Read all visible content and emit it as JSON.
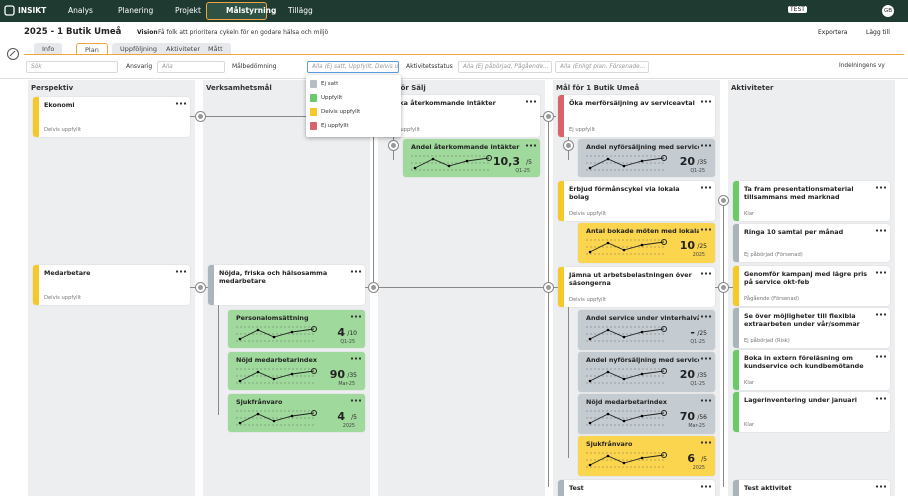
{
  "nav": {
    "brand": "INSIKT",
    "items": [
      "Analys",
      "Planering",
      "Projekt",
      "Målstyrning",
      "Tillägg"
    ],
    "active": "Målstyrning",
    "env": "TEST",
    "user": "GB"
  },
  "header": {
    "title": "2025 - 1 Butik Umeå",
    "vision_label": "Vision",
    "vision": "Få folk att prioritera cykeln för en godare hälsa och miljö",
    "actions": [
      "Exportera",
      "Lägg till"
    ]
  },
  "tabs": [
    "Info",
    "Plan",
    "Uppföljning",
    "Aktiviteter",
    "Mått"
  ],
  "active_tab": "Plan",
  "filters": {
    "search": "Sök",
    "owner_label": "Ansvarig",
    "owner": "Alla",
    "goal_label": "Målbedömning",
    "goal": "Alla (Ej satt, Uppfyllt, Delvis upp...",
    "activity_label": "Aktivitetsstatus",
    "activity": "Alla (Ej påbörjad, Pågående...",
    "plan": "Alla (Enligt plan, Försenade...",
    "view": "Indelningens vy"
  },
  "dropdown": [
    {
      "label": "Ej satt",
      "color": "#b5bec5"
    },
    {
      "label": "Uppfyllt",
      "color": "#6cc96a"
    },
    {
      "label": "Delvis uppfyllt",
      "color": "#f5c928"
    },
    {
      "label": "Ej uppfyllt",
      "color": "#d9636b"
    }
  ],
  "columns": [
    {
      "title": "Perspektiv",
      "cards": [
        {
          "type": "goal",
          "title": "Ekonomi",
          "status": "Delvis uppfyllt",
          "color": "#f5c928"
        },
        {
          "type": "goal",
          "title": "Medarbetare",
          "status": "Delvis uppfyllt",
          "color": "#f5c928"
        }
      ]
    },
    {
      "title": "Verksamhetsmål",
      "cards": [
        {
          "type": "goal",
          "title": "Nöjda, friska och hälsosamma medarbetare",
          "color": "#a9b4bb"
        },
        {
          "type": "measure",
          "title": "Personalomsättning",
          "value": "4",
          "target": "/10",
          "period": "Q1-25",
          "color": "#9fd99b"
        },
        {
          "type": "measure",
          "title": "Nöjd medarbetarindex",
          "value": "90",
          "target": "/35",
          "period": "Mar-25",
          "color": "#9fd99b"
        },
        {
          "type": "measure",
          "title": "Sjukfrånvaro",
          "value": "4",
          "target": "/5",
          "period": "2025",
          "color": "#9fd99b"
        }
      ]
    },
    {
      "title": "Mål för Sälj",
      "cards": [
        {
          "type": "goal",
          "title": "Öka återkommande intäkter",
          "status": "Ej uppfyllt",
          "color": "#d9636b"
        },
        {
          "type": "measure",
          "title": "Andel återkommande intäkter",
          "value": "10,3",
          "target": "/5",
          "period": "Q1-25",
          "color": "#9fd99b"
        }
      ]
    },
    {
      "title": "Mål för 1 Butik Umeå",
      "cards": [
        {
          "type": "goal",
          "title": "Öka merförsäljning av serviceavtal",
          "status": "Ej uppfyllt",
          "color": "#d9636b"
        },
        {
          "type": "measure",
          "title": "Andel nyförsäljning med serviceavtal",
          "value": "20",
          "target": "/35",
          "period": "Q1-25",
          "color": "#c4ccd2"
        },
        {
          "type": "goal",
          "title": "Erbjud förmånscykel via lokala bolag",
          "status": "Delvis uppfyllt",
          "color": "#f5c928"
        },
        {
          "type": "measure",
          "title": "Antal bokade möten med lokala bo...",
          "value": "10",
          "target": "/25",
          "period": "2025",
          "color": "#fcd54e"
        },
        {
          "type": "goal",
          "title": "Jämna ut arbetsbelastningen över säsongerna",
          "status": "Delvis uppfyllt",
          "color": "#f5c928"
        },
        {
          "type": "measure",
          "title": "Andel service under vinterhalvår",
          "value": "-",
          "target": "/25",
          "period": "Q1-25",
          "color": "#c4ccd2"
        },
        {
          "type": "measure",
          "title": "Andel nyförsäljning med serviceavtal",
          "value": "20",
          "target": "/35",
          "period": "Q1-25",
          "color": "#c4ccd2"
        },
        {
          "type": "measure",
          "title": "Nöjd medarbetarindex",
          "value": "70",
          "target": "/56",
          "period": "Mar-25",
          "color": "#c4ccd2"
        },
        {
          "type": "measure",
          "title": "Sjukfrånvaro",
          "value": "6",
          "target": "/5",
          "period": "2025",
          "color": "#fcd54e"
        },
        {
          "type": "goal",
          "title": "Test",
          "color": "#a9b4bb"
        }
      ]
    },
    {
      "title": "Aktiviteter",
      "cards": [
        {
          "type": "goal",
          "title": "Ta fram presentationsmaterial tillsammans med marknad",
          "status": "Klar",
          "color": "#6cc96a"
        },
        {
          "type": "goal",
          "title": "Ringa 10 samtal per månad",
          "status": "Ej påbörjad (Försenad)",
          "color": "#a9b4bb"
        },
        {
          "type": "goal",
          "title": "Genomför kampanj med lägre pris på service okt-feb",
          "status": "Pågående (Försenad)",
          "color": "#f5c928"
        },
        {
          "type": "goal",
          "title": "Se över möjligheter till flexibla extraarbeten under vår/sommar",
          "status": "Ej påbörjad (Risk)",
          "color": "#a9b4bb"
        },
        {
          "type": "goal",
          "title": "Boka in extern föreläsning om kundservice och kundbemötande",
          "status": "Klar",
          "color": "#6cc96a"
        },
        {
          "type": "goal",
          "title": "Lagerinventering under januari",
          "status": "Klar",
          "color": "#6cc96a"
        },
        {
          "type": "goal",
          "title": "Test aktivitet",
          "color": "#a9b4bb"
        }
      ]
    }
  ]
}
